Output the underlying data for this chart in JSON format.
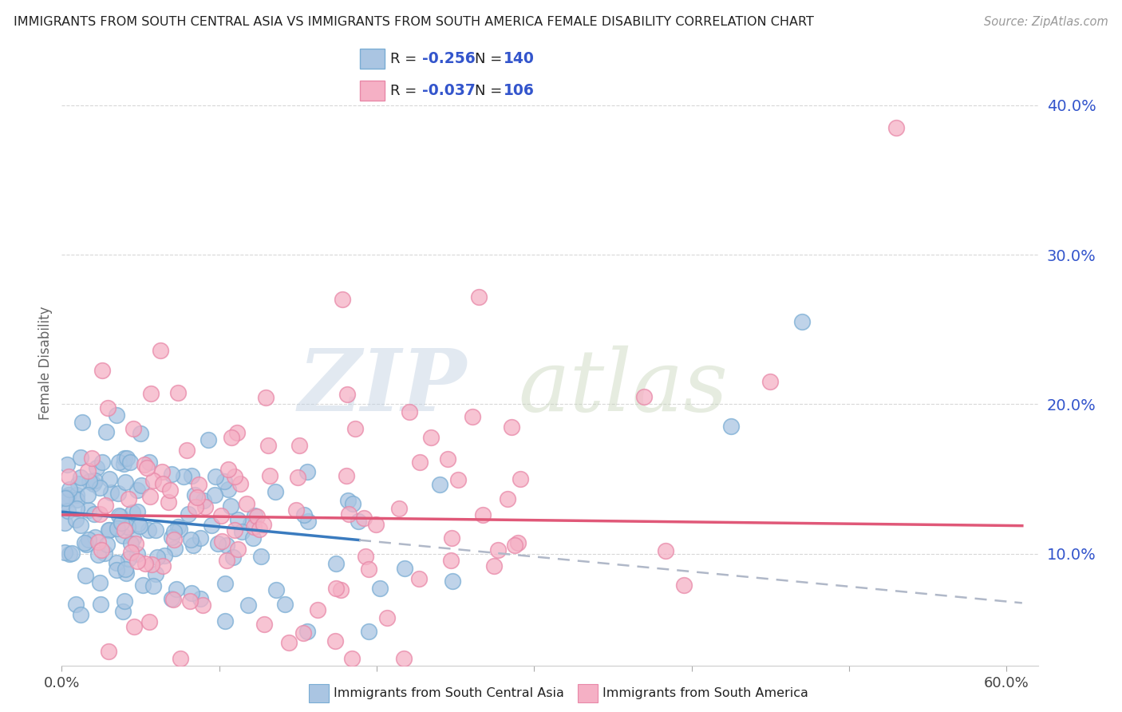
{
  "title": "IMMIGRANTS FROM SOUTH CENTRAL ASIA VS IMMIGRANTS FROM SOUTH AMERICA FEMALE DISABILITY CORRELATION CHART",
  "source": "Source: ZipAtlas.com",
  "label1": "Immigrants from South Central Asia",
  "label2": "Immigrants from South America",
  "R1": -0.256,
  "N1": 140,
  "R2": -0.037,
  "N2": 106,
  "color_blue_fill": "#aac5e2",
  "color_blue_edge": "#7aadd4",
  "color_pink_fill": "#f5b0c5",
  "color_pink_edge": "#e888a8",
  "color_blue_line": "#3a7bbf",
  "color_pink_line": "#e05878",
  "color_dashed": "#b0b8c8",
  "color_text_blue": "#3355cc",
  "color_title": "#222222",
  "color_source": "#999999",
  "color_ylabel": "#666666",
  "color_ytick": "#3355cc",
  "color_xtick": "#444444",
  "color_grid": "#d8d8d8",
  "xlim": [
    0.0,
    0.62
  ],
  "ylim": [
    0.025,
    0.43
  ],
  "yticks": [
    0.1,
    0.2,
    0.3,
    0.4
  ],
  "ytick_labels": [
    "10.0%",
    "20.0%",
    "30.0%",
    "40.0%"
  ],
  "xticks": [
    0.0,
    0.1,
    0.2,
    0.3,
    0.4,
    0.5,
    0.6
  ],
  "ylabel": "Female Disability",
  "figsize": [
    14.06,
    8.92
  ],
  "dpi": 100,
  "blue_intercept": 0.128,
  "blue_slope": -0.1,
  "pink_intercept": 0.126,
  "pink_slope": -0.012
}
